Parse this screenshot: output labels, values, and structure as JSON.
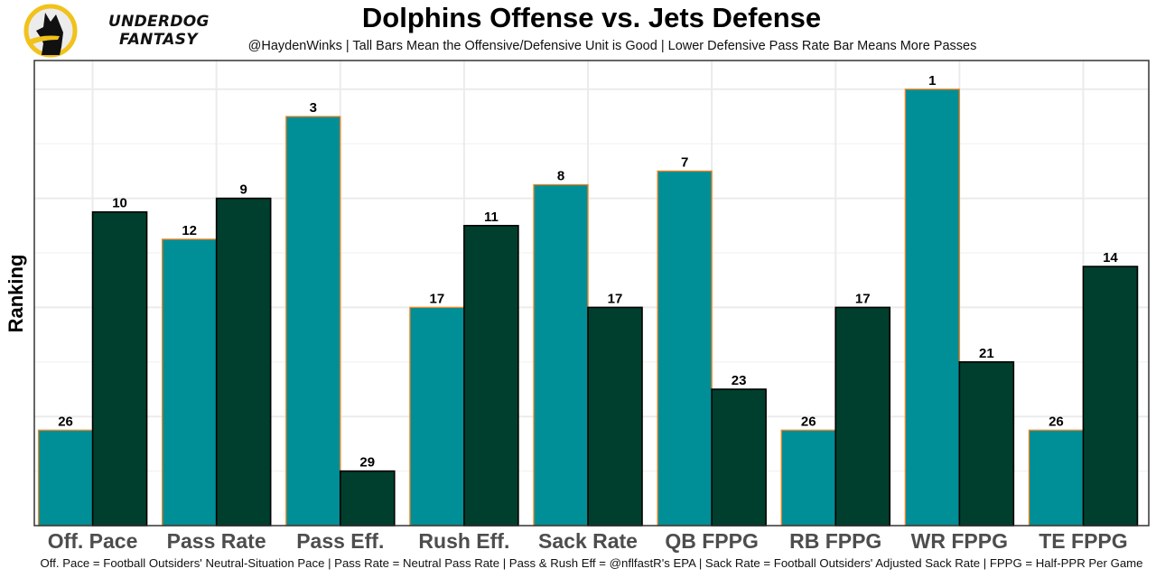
{
  "brand": {
    "logo_line1": "UNDERDOG",
    "logo_line2": "FANTASY",
    "icon": "underdog-dog-icon",
    "colors": {
      "ring": "#f1c21b",
      "dog": "#111111"
    }
  },
  "header": {
    "title": "Dolphins Offense vs. Jets Defense",
    "subtitle": "@HaydenWinks | Tall Bars Mean the Offensive/Defensive Unit is Good | Lower Defensive Pass Rate Bar Means More Passes"
  },
  "footer": {
    "caption": "Off. Pace = Football Outsiders' Neutral-Situation Pace | Pass Rate = Neutral Pass Rate | Pass & Rush Eff = @nflfastR's EPA | Sack Rate = Football Outsiders' Adjusted Sack Rate | FPPG = Half-PPR Per Game"
  },
  "chart_data": {
    "type": "bar",
    "title": "Dolphins Offense vs. Jets Defense",
    "xlabel": "",
    "ylabel": "Ranking",
    "bar_height_rule": "height = 33 - rank (lower rank = taller bar)",
    "ylim": [
      0,
      34
    ],
    "grid": true,
    "grid_step": 4,
    "legend": "none",
    "categories": [
      "Off. Pace",
      "Pass Rate",
      "Pass Eff.",
      "Rush Eff.",
      "Sack Rate",
      "QB FPPG",
      "RB FPPG",
      "WR FPPG",
      "TE FPPG"
    ],
    "series": [
      {
        "name": "Dolphins Offense",
        "fill": "#008e97",
        "stroke": "#f58220",
        "values": [
          26,
          12,
          3,
          17,
          8,
          7,
          26,
          1,
          26
        ]
      },
      {
        "name": "Jets Defense",
        "fill": "#003f2d",
        "stroke": "#000000",
        "values": [
          10,
          9,
          29,
          11,
          17,
          23,
          17,
          21,
          14
        ]
      }
    ]
  }
}
